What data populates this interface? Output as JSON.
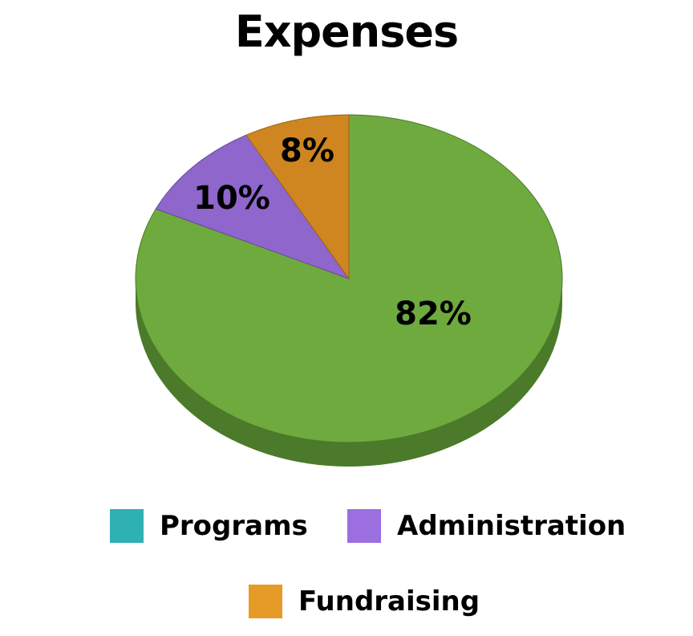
{
  "chart_data": {
    "type": "pie",
    "title": "Expenses",
    "slices": [
      {
        "label": "Programs",
        "value": 82,
        "display": "82%",
        "color": "#6faa3e",
        "side_color": "#4b7a2a",
        "legend_color": "#2fb0b3"
      },
      {
        "label": "Administration",
        "value": 10,
        "display": "10%",
        "color": "#8f66cc",
        "side_color": "#6a4a9a",
        "legend_color": "#9b6fe0"
      },
      {
        "label": "Fundraising",
        "value": 8,
        "display": "8%",
        "color": "#cf8620",
        "side_color": "#9a6318",
        "legend_color": "#e59b25"
      }
    ],
    "legend_position": "bottom"
  }
}
